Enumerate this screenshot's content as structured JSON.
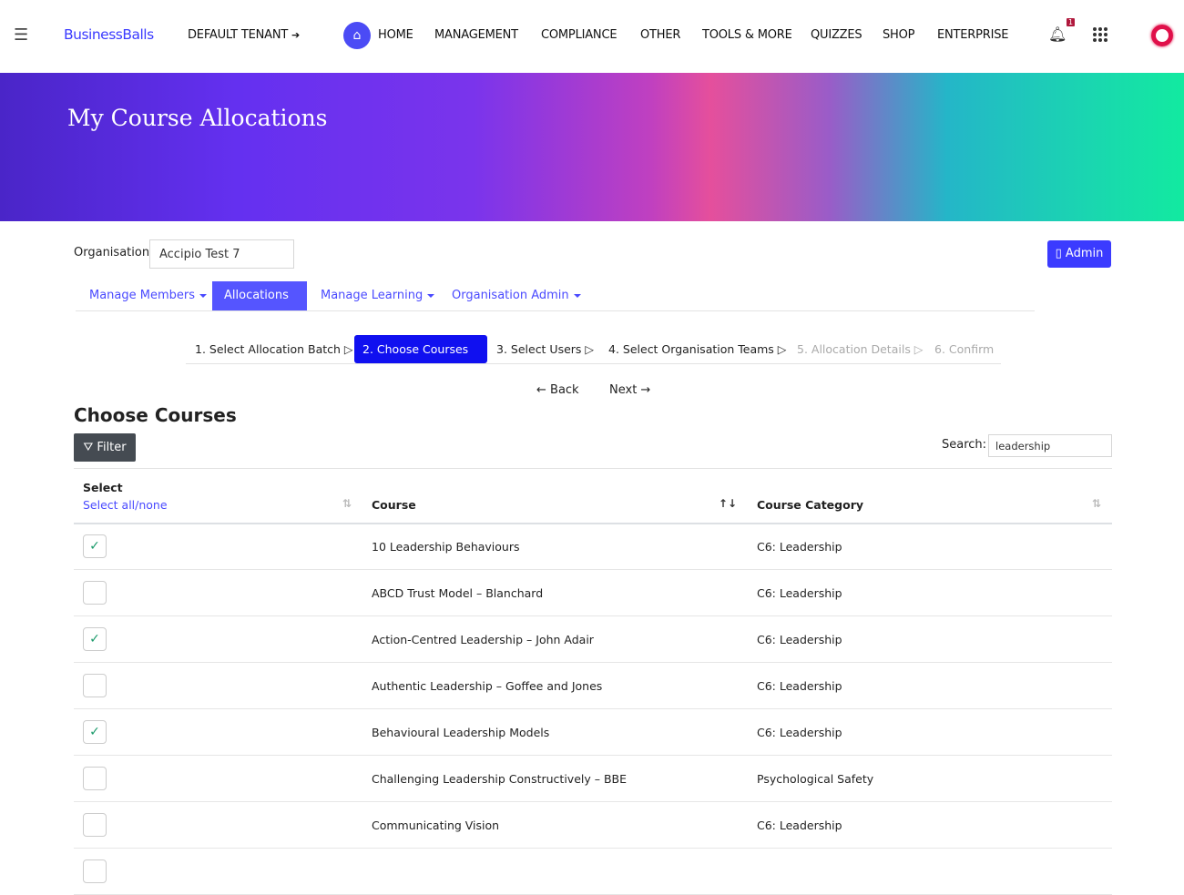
{
  "nav": {
    "brand": "BusinessBalls",
    "tenant": "DEFAULT TENANT",
    "items": [
      "HOME",
      "MANAGEMENT",
      "COMPLIANCE",
      "OTHER",
      "TOOLS & MORE",
      "QUIZZES",
      "SHOP",
      "ENTERPRISE"
    ],
    "notification_count": "1",
    "brand_color": "#3b3bff"
  },
  "banner": {
    "title": "My Course Allocations"
  },
  "org": {
    "label": "Organisation",
    "value": "Accipio Test 7",
    "admin_button": "▯ Admin"
  },
  "tabs": [
    {
      "label": "Manage Members"
    },
    {
      "label": "Allocations",
      "active": true
    },
    {
      "label": "Manage Learning"
    },
    {
      "label": "Organisation Admin"
    }
  ],
  "steps": [
    {
      "label": "1. Select Allocation Batch ▷"
    },
    {
      "label": "2. Choose Courses ▷",
      "active": true
    },
    {
      "label": "3. Select Users ▷"
    },
    {
      "label": "4. Select Organisation Teams ▷"
    },
    {
      "label": "5. Allocation Details ▷",
      "disabled": true
    },
    {
      "label": "6. Confirm",
      "disabled": true
    }
  ],
  "wizard": {
    "back": "← Back",
    "next": "Next →"
  },
  "section": {
    "title": "Choose Courses",
    "filter": "Filter",
    "search_label": "Search:",
    "search_value": "leadership"
  },
  "table": {
    "select_header": "Select",
    "select_all": "Select all/none",
    "course_header": "Course",
    "category_header": "Course Category",
    "rows": [
      {
        "checked": true,
        "course": "10 Leadership Behaviours",
        "category": "C6: Leadership"
      },
      {
        "checked": false,
        "course": "ABCD Trust Model – Blanchard",
        "category": "C6: Leadership"
      },
      {
        "checked": true,
        "course": "Action-Centred Leadership – John Adair",
        "category": "C6: Leadership"
      },
      {
        "checked": false,
        "course": "Authentic Leadership – Goffee and Jones",
        "category": "C6: Leadership"
      },
      {
        "checked": true,
        "course": "Behavioural Leadership Models",
        "category": "C6: Leadership"
      },
      {
        "checked": false,
        "course": "Challenging Leadership Constructively – BBE",
        "category": "Psychological Safety"
      },
      {
        "checked": false,
        "course": "Communicating Vision",
        "category": "C6: Leadership"
      },
      {
        "checked": false,
        "course": "",
        "category": ""
      }
    ]
  }
}
